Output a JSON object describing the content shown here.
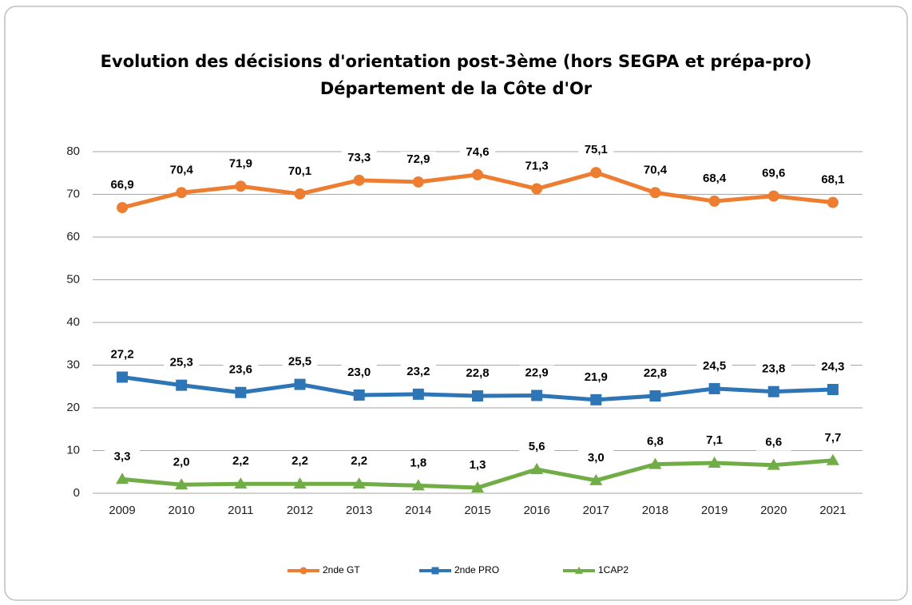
{
  "chart_data": {
    "type": "line",
    "title": "Evolution des décisions d'orientation post-3ème (hors SEGPA et prépa-pro)",
    "subtitle": "Département de la Côte d'Or",
    "categories": [
      "2009",
      "2010",
      "2011",
      "2012",
      "2013",
      "2014",
      "2015",
      "2016",
      "2017",
      "2018",
      "2019",
      "2020",
      "2021"
    ],
    "series": [
      {
        "name": "2nde GT",
        "color": "#ed7d31",
        "marker": "circle",
        "values": [
          66.9,
          70.4,
          71.9,
          70.1,
          73.3,
          72.9,
          74.6,
          71.3,
          75.1,
          70.4,
          68.4,
          69.6,
          68.1
        ],
        "value_labels": [
          "66,9",
          "70,4",
          "71,9",
          "70,1",
          "73,3",
          "72,9",
          "74,6",
          "71,3",
          "75,1",
          "70,4",
          "68,4",
          "69,6",
          "68,1"
        ]
      },
      {
        "name": "2nde PRO",
        "color": "#2e75b6",
        "marker": "square",
        "values": [
          27.2,
          25.3,
          23.6,
          25.5,
          23.0,
          23.2,
          22.8,
          22.9,
          21.9,
          22.8,
          24.5,
          23.8,
          24.3
        ],
        "value_labels": [
          "27,2",
          "25,3",
          "23,6",
          "25,5",
          "23,0",
          "23,2",
          "22,8",
          "22,9",
          "21,9",
          "22,8",
          "24,5",
          "23,8",
          "24,3"
        ]
      },
      {
        "name": "1CAP2",
        "color": "#70ad47",
        "marker": "triangle",
        "values": [
          3.3,
          2.0,
          2.2,
          2.2,
          2.2,
          1.8,
          1.3,
          5.6,
          3.0,
          6.8,
          7.1,
          6.6,
          7.7
        ],
        "value_labels": [
          "3,3",
          "2,0",
          "2,2",
          "2,2",
          "2,2",
          "1,8",
          "1,3",
          "5,6",
          "3,0",
          "6,8",
          "7,1",
          "6,6",
          "7,7"
        ]
      }
    ],
    "ylim": [
      0,
      80
    ],
    "yticks": [
      0,
      10,
      20,
      30,
      40,
      50,
      60,
      70,
      80
    ],
    "grid": true,
    "legend": "bottom"
  }
}
